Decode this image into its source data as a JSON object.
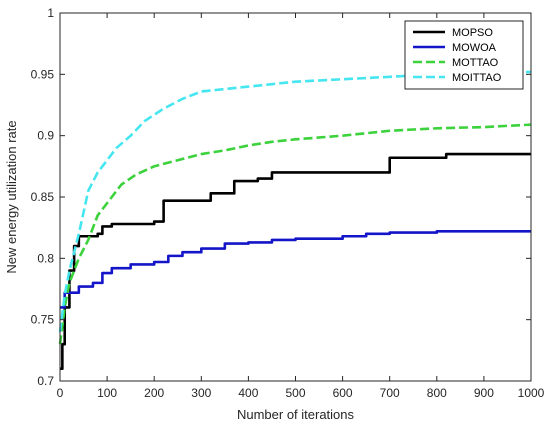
{
  "chart_data": {
    "type": "line",
    "title": "",
    "xlabel": "Number of iterations",
    "ylabel": "New energy utilization rate",
    "xlim": [
      0,
      1000
    ],
    "ylim": [
      0.7,
      1.0
    ],
    "xticks": [
      0,
      100,
      200,
      300,
      400,
      500,
      600,
      700,
      800,
      900,
      1000
    ],
    "yticks": [
      0.7,
      0.75,
      0.8,
      0.85,
      0.9,
      0.95,
      1
    ],
    "xtick_labels": [
      "0",
      "100",
      "200",
      "300",
      "400",
      "500",
      "600",
      "700",
      "800",
      "900",
      "1000"
    ],
    "ytick_labels": [
      "0.7",
      "0.75",
      "0.8",
      "0.85",
      "0.9",
      "0.95",
      "1"
    ],
    "grid": false,
    "legend_position": "top-right",
    "series": [
      {
        "name": "MOPSO",
        "color": "#000000",
        "dash": "solid",
        "step": true,
        "points": [
          [
            0,
            0.71
          ],
          [
            5,
            0.73
          ],
          [
            10,
            0.76
          ],
          [
            20,
            0.79
          ],
          [
            30,
            0.81
          ],
          [
            40,
            0.818
          ],
          [
            80,
            0.82
          ],
          [
            90,
            0.826
          ],
          [
            110,
            0.828
          ],
          [
            200,
            0.83
          ],
          [
            220,
            0.847
          ],
          [
            290,
            0.847
          ],
          [
            320,
            0.853
          ],
          [
            370,
            0.863
          ],
          [
            420,
            0.865
          ],
          [
            450,
            0.87
          ],
          [
            690,
            0.87
          ],
          [
            700,
            0.882
          ],
          [
            820,
            0.885
          ],
          [
            1000,
            0.885
          ]
        ]
      },
      {
        "name": "MOWOA",
        "color": "#1414c8",
        "dash": "solid",
        "step": true,
        "points": [
          [
            0,
            0.76
          ],
          [
            10,
            0.772
          ],
          [
            40,
            0.777
          ],
          [
            70,
            0.78
          ],
          [
            90,
            0.788
          ],
          [
            110,
            0.792
          ],
          [
            150,
            0.795
          ],
          [
            200,
            0.797
          ],
          [
            230,
            0.802
          ],
          [
            260,
            0.805
          ],
          [
            300,
            0.808
          ],
          [
            350,
            0.812
          ],
          [
            400,
            0.813
          ],
          [
            450,
            0.815
          ],
          [
            500,
            0.816
          ],
          [
            600,
            0.818
          ],
          [
            650,
            0.82
          ],
          [
            700,
            0.821
          ],
          [
            800,
            0.822
          ],
          [
            1000,
            0.822
          ]
        ]
      },
      {
        "name": "MOTTAO",
        "color": "#3cd23c",
        "dash": "dashed",
        "step": false,
        "points": [
          [
            0,
            0.73
          ],
          [
            10,
            0.76
          ],
          [
            20,
            0.78
          ],
          [
            40,
            0.8
          ],
          [
            60,
            0.815
          ],
          [
            80,
            0.835
          ],
          [
            100,
            0.845
          ],
          [
            130,
            0.86
          ],
          [
            160,
            0.868
          ],
          [
            200,
            0.875
          ],
          [
            250,
            0.88
          ],
          [
            300,
            0.885
          ],
          [
            350,
            0.888
          ],
          [
            400,
            0.892
          ],
          [
            450,
            0.895
          ],
          [
            500,
            0.897
          ],
          [
            600,
            0.9
          ],
          [
            700,
            0.904
          ],
          [
            800,
            0.906
          ],
          [
            900,
            0.907
          ],
          [
            1000,
            0.909
          ]
        ]
      },
      {
        "name": "MOITTAO",
        "color": "#46e6f0",
        "dash": "dashed",
        "step": false,
        "points": [
          [
            0,
            0.74
          ],
          [
            10,
            0.77
          ],
          [
            20,
            0.79
          ],
          [
            40,
            0.82
          ],
          [
            60,
            0.855
          ],
          [
            80,
            0.87
          ],
          [
            100,
            0.88
          ],
          [
            120,
            0.89
          ],
          [
            150,
            0.9
          ],
          [
            180,
            0.912
          ],
          [
            220,
            0.922
          ],
          [
            260,
            0.93
          ],
          [
            300,
            0.936
          ],
          [
            350,
            0.938
          ],
          [
            400,
            0.94
          ],
          [
            450,
            0.942
          ],
          [
            500,
            0.944
          ],
          [
            600,
            0.946
          ],
          [
            700,
            0.948
          ],
          [
            800,
            0.95
          ],
          [
            900,
            0.951
          ],
          [
            1000,
            0.952
          ]
        ]
      }
    ]
  }
}
